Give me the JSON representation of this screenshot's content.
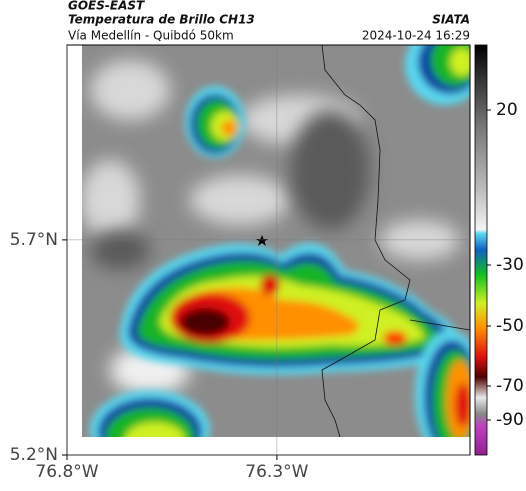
{
  "header": {
    "source": "GOES-EAST",
    "product": "Temperatura de Brillo CH13",
    "route": "Vía Medellín - Quibdó 50km",
    "agency": "SIATA",
    "datetime": "2024-10-24 16:29"
  },
  "map": {
    "xlim": [
      -76.8,
      -75.84
    ],
    "ylim": [
      5.2,
      6.153
    ],
    "xticks": [
      {
        "value": -76.8,
        "label": "76.8°W"
      },
      {
        "value": -76.3,
        "label": "76.3°W"
      }
    ],
    "yticks": [
      {
        "value": 5.2,
        "label": "5.2°N"
      },
      {
        "value": 5.7,
        "label": "5.7°N"
      }
    ],
    "colorbar_ticks": [
      20,
      -30,
      -50,
      -70,
      -90
    ]
  }
}
